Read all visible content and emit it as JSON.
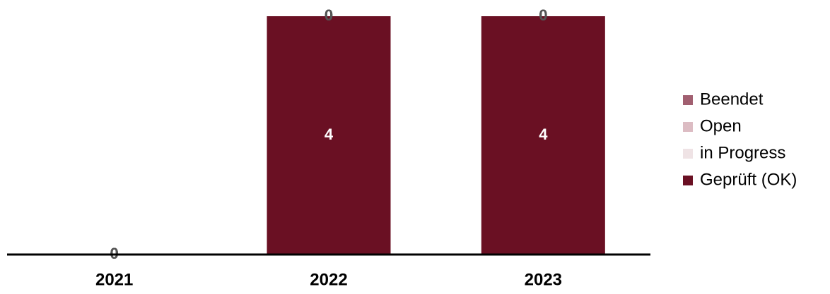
{
  "chart_data": {
    "type": "stacked_bar",
    "categories": [
      "2021",
      "2022",
      "2023"
    ],
    "series": [
      {
        "name": "Geprüft (OK)",
        "color": "#6a1023",
        "values": [
          0,
          4,
          4
        ]
      },
      {
        "name": "in Progress",
        "color": "#efe3e5",
        "values": [
          0,
          0,
          0
        ]
      },
      {
        "name": "Open",
        "color": "#dcbcc3",
        "values": [
          0,
          0,
          0
        ]
      },
      {
        "name": "Beendet",
        "color": "#a15f70",
        "values": [
          0,
          0,
          0
        ]
      }
    ],
    "ylim": [
      0,
      4
    ]
  }
}
